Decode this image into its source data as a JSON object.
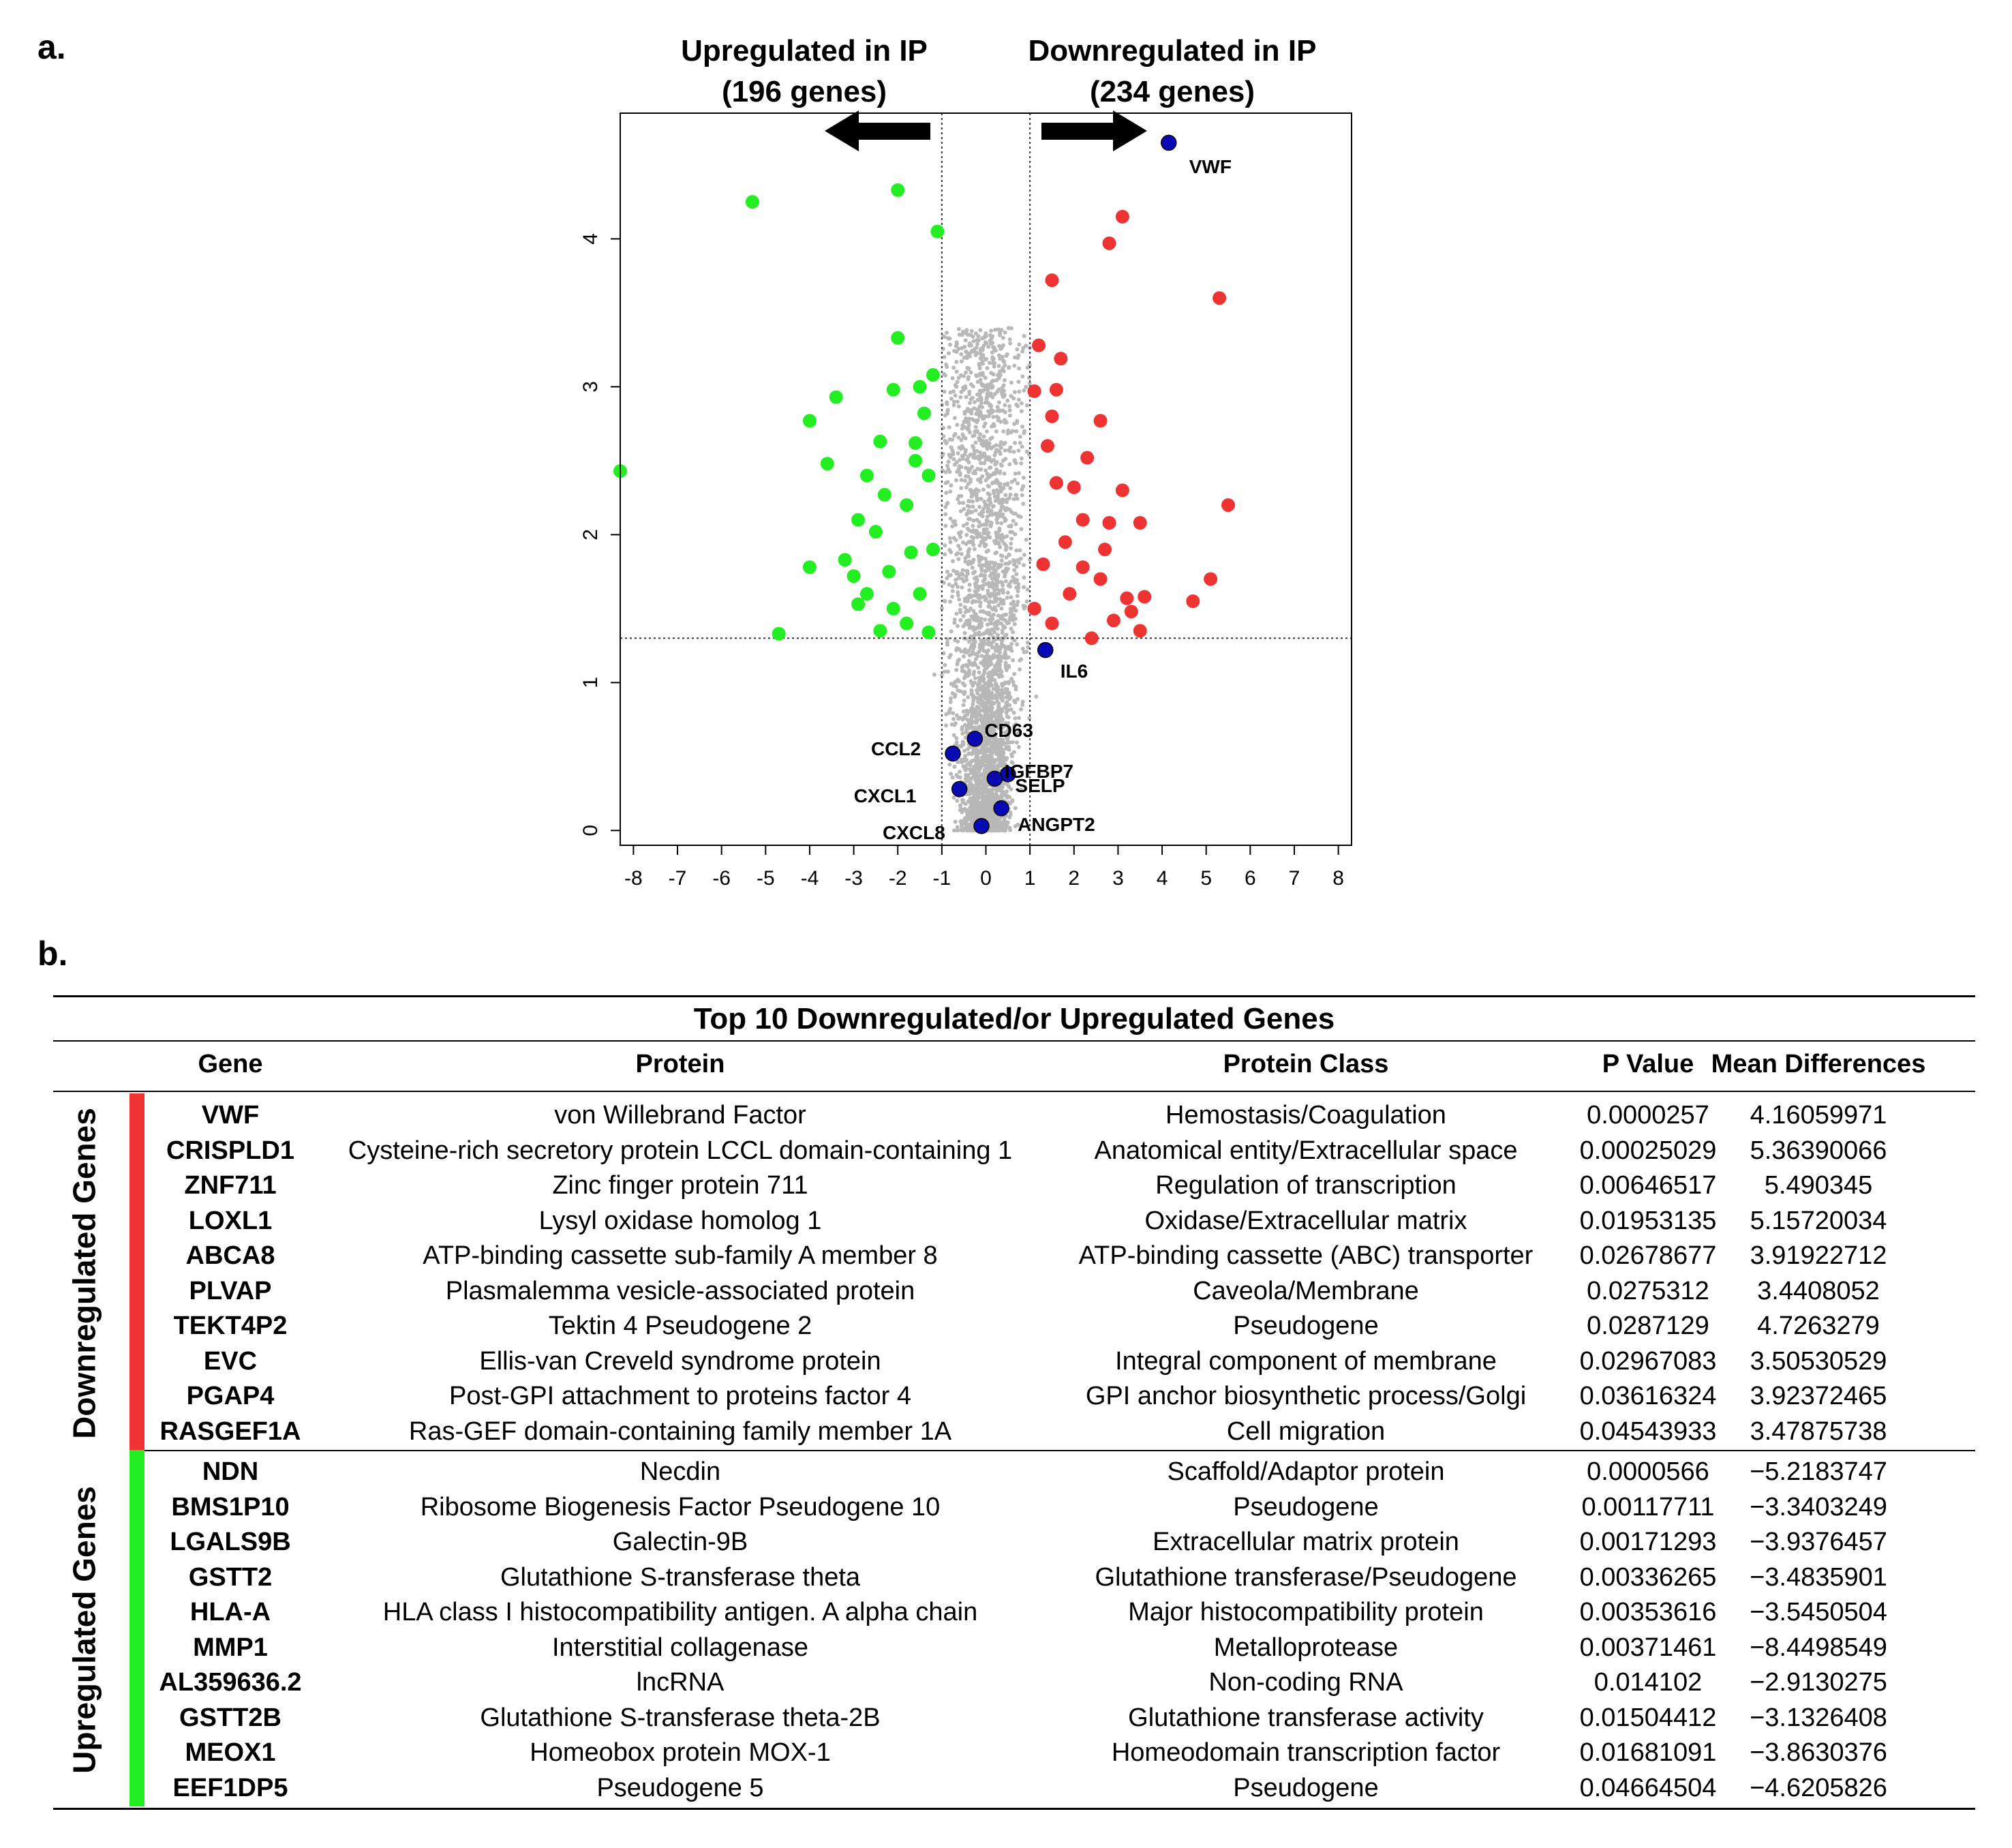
{
  "panel_a_label": "a.",
  "panel_b_label": "b.",
  "annotations": {
    "upregulated_line1": "Upregulated in IP",
    "upregulated_line2": "(196 genes)",
    "downregulated_line1": "Downregulated in IP",
    "downregulated_line2": "(234 genes)"
  },
  "colors": {
    "up": "#22ee22",
    "down": "#ee3333",
    "highlight": "#0a0ab5",
    "background_points": "#b8b8b8"
  },
  "chart_data": {
    "type": "scatter",
    "title": "",
    "xlabel": "",
    "ylabel": "",
    "xlim": [
      -8.3,
      8.3
    ],
    "ylim": [
      -0.1,
      4.85
    ],
    "x_ticks": [
      -8,
      -7,
      -6,
      -5,
      -4,
      -3,
      -2,
      -1,
      0,
      1,
      2,
      3,
      4,
      5,
      6,
      7,
      8
    ],
    "y_ticks": [
      0,
      1,
      2,
      3,
      4
    ],
    "thresholds": {
      "x": [
        -1,
        1
      ],
      "y": 1.3
    },
    "series": [
      {
        "group": "up",
        "points": [
          [
            -5.3,
            4.25
          ],
          [
            -2.0,
            4.33
          ],
          [
            -1.1,
            4.05
          ],
          [
            -8.3,
            2.43
          ],
          [
            -4.7,
            1.33
          ],
          [
            -4.0,
            2.77
          ],
          [
            -3.6,
            2.48
          ],
          [
            -3.4,
            2.93
          ],
          [
            -4.0,
            1.78
          ],
          [
            -3.2,
            1.83
          ],
          [
            -3.0,
            1.72
          ],
          [
            -2.9,
            2.1
          ],
          [
            -2.7,
            1.6
          ],
          [
            -2.7,
            2.4
          ],
          [
            -2.4,
            2.63
          ],
          [
            -2.0,
            3.33
          ],
          [
            -2.1,
            2.98
          ],
          [
            -1.5,
            3.0
          ],
          [
            -1.2,
            3.08
          ],
          [
            -1.4,
            2.82
          ],
          [
            -2.3,
            2.27
          ],
          [
            -2.5,
            2.02
          ],
          [
            -1.6,
            2.5
          ],
          [
            -1.8,
            2.2
          ],
          [
            -1.3,
            2.4
          ],
          [
            -1.2,
            1.9
          ],
          [
            -1.5,
            1.6
          ],
          [
            -2.2,
            1.75
          ],
          [
            -2.1,
            1.5
          ],
          [
            -2.9,
            1.53
          ],
          [
            -1.8,
            1.4
          ],
          [
            -1.3,
            1.34
          ],
          [
            -1.7,
            1.88
          ],
          [
            -2.4,
            1.35
          ],
          [
            -1.6,
            2.62
          ]
        ]
      },
      {
        "group": "down",
        "points": [
          [
            3.1,
            4.15
          ],
          [
            2.8,
            3.97
          ],
          [
            1.5,
            3.72
          ],
          [
            5.3,
            3.6
          ],
          [
            1.2,
            3.28
          ],
          [
            1.7,
            3.19
          ],
          [
            1.1,
            2.97
          ],
          [
            1.6,
            2.98
          ],
          [
            1.5,
            2.8
          ],
          [
            2.6,
            2.77
          ],
          [
            1.4,
            2.6
          ],
          [
            2.3,
            2.52
          ],
          [
            1.6,
            2.35
          ],
          [
            2.0,
            2.32
          ],
          [
            3.1,
            2.3
          ],
          [
            5.5,
            2.2
          ],
          [
            2.8,
            2.08
          ],
          [
            3.5,
            2.08
          ],
          [
            2.7,
            1.9
          ],
          [
            1.8,
            1.95
          ],
          [
            2.2,
            1.78
          ],
          [
            2.6,
            1.7
          ],
          [
            5.1,
            1.7
          ],
          [
            4.7,
            1.55
          ],
          [
            3.6,
            1.58
          ],
          [
            3.2,
            1.57
          ],
          [
            3.3,
            1.48
          ],
          [
            2.9,
            1.42
          ],
          [
            3.5,
            1.35
          ],
          [
            1.3,
            1.8
          ],
          [
            1.1,
            1.5
          ],
          [
            1.5,
            1.4
          ],
          [
            2.4,
            1.3
          ],
          [
            1.9,
            1.6
          ],
          [
            2.2,
            2.1
          ]
        ]
      },
      {
        "group": "highlight",
        "points": [
          {
            "x": 4.15,
            "y": 4.65,
            "label": "VWF"
          },
          {
            "x": 1.35,
            "y": 1.22,
            "label": "IL6"
          },
          {
            "x": -0.25,
            "y": 0.62,
            "label": "CD63"
          },
          {
            "x": -0.75,
            "y": 0.52,
            "label": "CCL2"
          },
          {
            "x": 0.5,
            "y": 0.38,
            "label": "IGFBP7"
          },
          {
            "x": 0.2,
            "y": 0.35,
            "label": "SELP"
          },
          {
            "x": -0.6,
            "y": 0.28,
            "label": "CXCL1"
          },
          {
            "x": 0.35,
            "y": 0.15,
            "label": "ANGPT2"
          },
          {
            "x": -0.1,
            "y": 0.03,
            "label": "CXCL8"
          }
        ]
      }
    ]
  },
  "table": {
    "title": "Top 10 Downregulated/or Upregulated Genes",
    "headers": [
      "Gene",
      "Protein",
      "Protein Class",
      "P Value",
      "Mean Differences"
    ],
    "groups": [
      {
        "name": "Downregulated Genes",
        "rows": [
          [
            "VWF",
            "von Willebrand Factor",
            "Hemostasis/Coagulation",
            "0.0000257",
            "4.16059971"
          ],
          [
            "CRISPLD1",
            "Cysteine-rich secretory protein LCCL domain-containing 1",
            "Anatomical entity/Extracellular  space",
            "0.00025029",
            "5.36390066"
          ],
          [
            "ZNF711",
            "Zinc finger protein 711",
            "Regulation of transcription",
            "0.00646517",
            "5.490345"
          ],
          [
            "LOXL1",
            "Lysyl oxidase homolog 1",
            "Oxidase/Extracellular  matrix",
            "0.01953135",
            "5.15720034"
          ],
          [
            "ABCA8",
            "ATP-binding cassette sub-family A member 8",
            "ATP-binding cassette (ABC) transporter",
            "0.02678677",
            "3.91922712"
          ],
          [
            "PLVAP",
            "Plasmalemma vesicle-associated protein",
            "Caveola/Membrane",
            "0.0275312",
            "3.4408052"
          ],
          [
            "TEKT4P2",
            "Tektin 4 Pseudogene 2",
            "Pseudogene",
            "0.0287129",
            "4.7263279"
          ],
          [
            "EVC",
            "Ellis-van  Creveld syndrome protein",
            "Integral  component of membrane",
            "0.02967083",
            "3.50530529"
          ],
          [
            "PGAP4",
            "Post-GPI attachment to proteins factor 4",
            "GPI anchor biosynthetic process/Golgi",
            "0.03616324",
            "3.92372465"
          ],
          [
            "RASGEF1A",
            "Ras-GEF domain-containing family member 1A",
            "Cell migration",
            "0.04543933",
            "3.47875738"
          ]
        ]
      },
      {
        "name": "Upregulated Genes",
        "rows": [
          [
            "NDN",
            "Necdin",
            "Scaffold/Adaptor protein",
            "0.0000566",
            "−5.2183747"
          ],
          [
            "BMS1P10",
            "Ribosome Biogenesis Factor Pseudogene 10",
            "Pseudogene",
            "0.00117711",
            "−3.3403249"
          ],
          [
            "LGALS9B",
            "Galectin-9B",
            "Extracellular matrix protein",
            "0.00171293",
            "−3.9376457"
          ],
          [
            "GSTT2",
            "Glutathione  S-transferase theta",
            "Glutathione transferase/Pseudogene",
            "0.00336265",
            "−3.4835901"
          ],
          [
            "HLA-A",
            "HLA class I histocompatibility antigen. A alpha chain",
            "Major histocompatibility protein",
            "0.00353616",
            "−3.5450504"
          ],
          [
            "MMP1",
            "Interstitial  collagenase",
            "Metalloprotease",
            "0.00371461",
            "−8.4498549"
          ],
          [
            "AL359636.2",
            "lncRNA",
            "Non-coding RNA",
            "0.014102",
            "−2.9130275"
          ],
          [
            "GSTT2B",
            "Glutathione  S-transferase theta-2B",
            "Glutathione transferase activity",
            "0.01504412",
            "−3.1326408"
          ],
          [
            "MEOX1",
            "Homeobox protein MOX-1",
            "Homeodomain transcription factor",
            "0.01681091",
            "−3.8630376"
          ],
          [
            "EEF1DP5",
            "Pseudogene 5",
            "Pseudogene",
            "0.04664504",
            "−4.6205826"
          ]
        ]
      }
    ]
  }
}
